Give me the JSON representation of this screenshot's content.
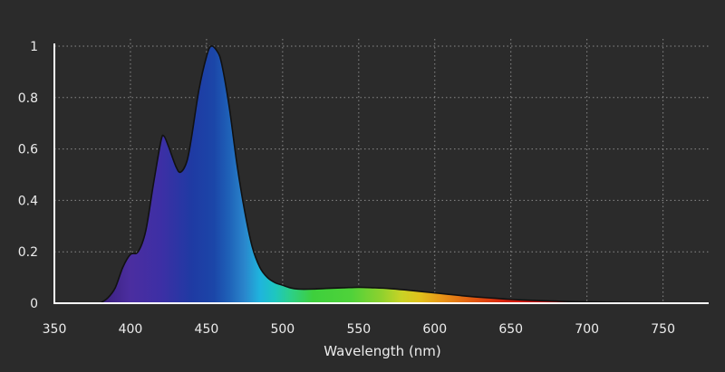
{
  "chart_data": {
    "type": "area",
    "title": "",
    "xlabel": "Wavelength (nm)",
    "ylabel": "",
    "xlim": [
      350,
      780
    ],
    "ylim": [
      0,
      1
    ],
    "x_ticks": [
      350,
      400,
      450,
      500,
      550,
      600,
      650,
      700,
      750
    ],
    "y_ticks": [
      0,
      0.2,
      0.4,
      0.6,
      0.8,
      1
    ],
    "y_tick_labels": [
      "0",
      "0.2",
      "0.4",
      "0.6",
      "0.8",
      "1"
    ],
    "x_tick_labels": [
      "350",
      "400",
      "450",
      "500",
      "550",
      "600",
      "650",
      "700",
      "750"
    ],
    "grid": true,
    "fill": "spectral color gradient",
    "series": [
      {
        "x": [
          380,
          385,
          390,
          395,
          400,
          405,
          410,
          415,
          420,
          422,
          425,
          430,
          433,
          437,
          440,
          445,
          450,
          453,
          457,
          460,
          465,
          470,
          475,
          480,
          485,
          490,
          495,
          500,
          505,
          510,
          520,
          530,
          540,
          550,
          560,
          570,
          580,
          590,
          600,
          610,
          620,
          630,
          640,
          650,
          660,
          670,
          680,
          690,
          700,
          710,
          720,
          730,
          740,
          750,
          760,
          770,
          780
        ],
        "y": [
          0.0,
          0.02,
          0.06,
          0.14,
          0.19,
          0.2,
          0.28,
          0.46,
          0.63,
          0.65,
          0.61,
          0.53,
          0.51,
          0.55,
          0.64,
          0.83,
          0.96,
          1.0,
          0.98,
          0.93,
          0.76,
          0.54,
          0.36,
          0.22,
          0.14,
          0.1,
          0.08,
          0.07,
          0.06,
          0.055,
          0.055,
          0.058,
          0.06,
          0.062,
          0.06,
          0.057,
          0.052,
          0.046,
          0.04,
          0.034,
          0.028,
          0.023,
          0.019,
          0.015,
          0.012,
          0.01,
          0.008,
          0.006,
          0.005,
          0.004,
          0.003,
          0.002,
          0.002,
          0.001,
          0.001,
          0.001,
          0.0
        ]
      }
    ]
  },
  "colors": {
    "background": "#2b2b2b",
    "grid": "#8a8a8a",
    "axis": "#ffffff",
    "text": "#ececec",
    "outline": "#111111"
  }
}
